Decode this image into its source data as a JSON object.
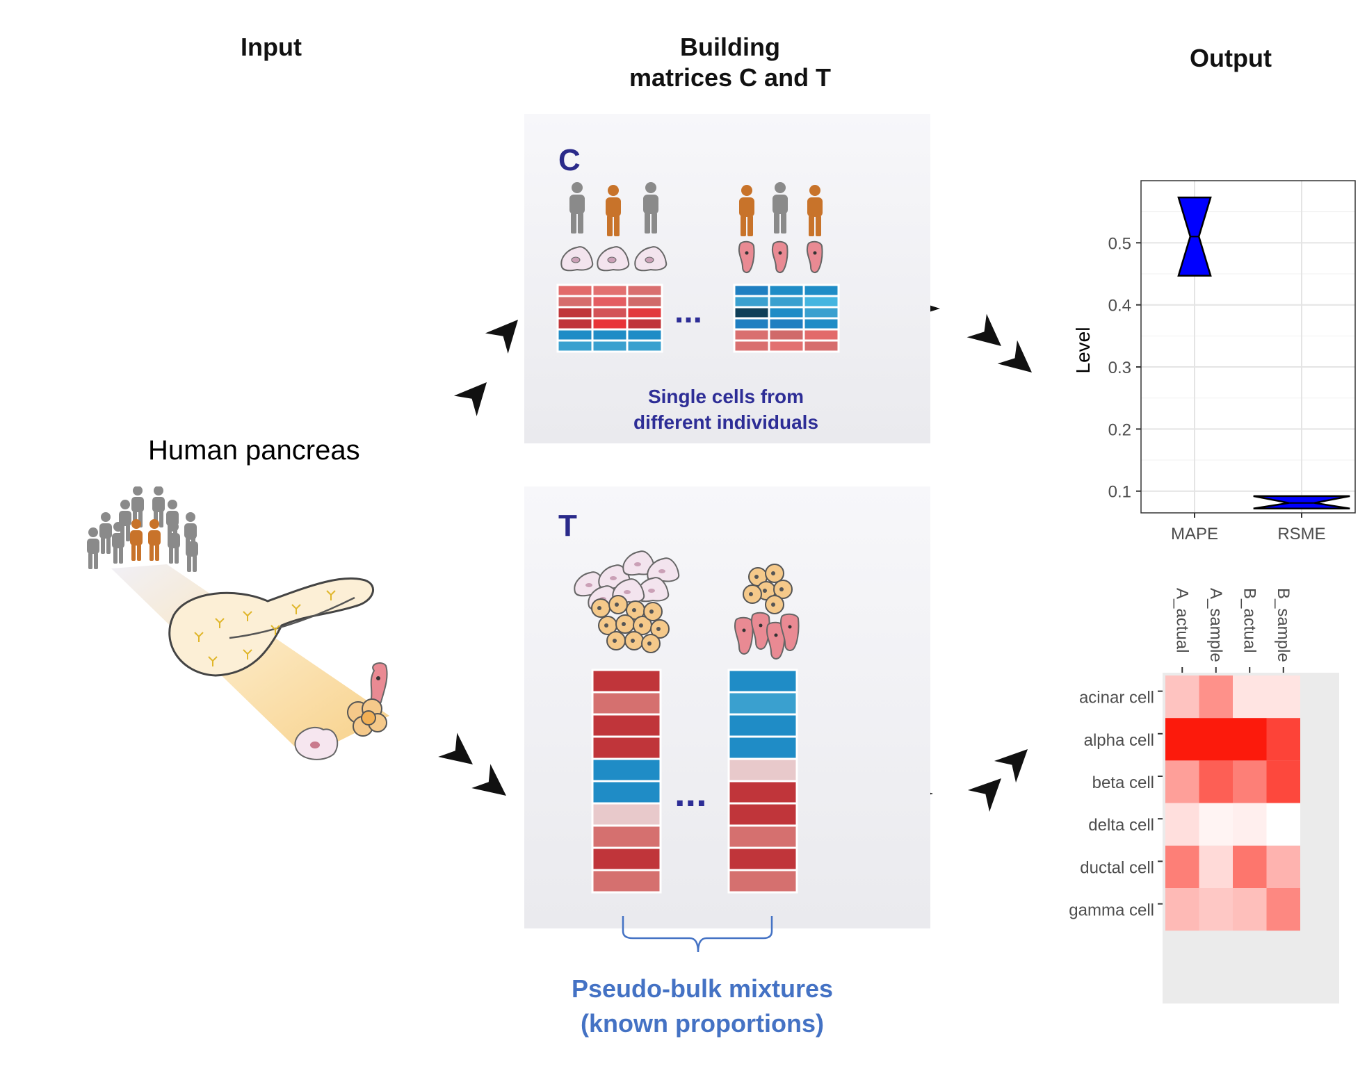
{
  "headers": {
    "input": "Input",
    "building_line1": "Building",
    "building_line2": "matrices C and T",
    "output": "Output"
  },
  "input": {
    "pancreas_title": "Human pancreas"
  },
  "panel_c": {
    "letter": "C",
    "note_line1": "Single cells from",
    "note_line2": "different individuals",
    "ellipsis": "..."
  },
  "panel_t": {
    "letter": "T",
    "ellipsis": "...",
    "caption_line1": "Pseudo-bulk mixtures",
    "caption_line2": "(known proportions)"
  },
  "colors": {
    "male_person": "#8a8a8a",
    "female_person": "#c8732a",
    "red_high": "#c0353a",
    "red_mid": "#d5706f",
    "red_low": "#e8c9cb",
    "blue_high": "#1f7fc1",
    "blue_mid": "#3aa0cf",
    "accent_text": "#2d2d96",
    "caption_text": "#4472c4",
    "boxplot_fill": "#0000ff"
  },
  "chart_data": [
    {
      "type": "boxplot",
      "ylabel": "Level",
      "categories": [
        "MAPE",
        "RSME"
      ],
      "y_ticks": [
        0.1,
        0.2,
        0.3,
        0.4,
        0.5
      ],
      "ylim": [
        0.065,
        0.6
      ],
      "grid": true,
      "boxes": [
        {
          "category": "MAPE",
          "q1": 0.447,
          "median": 0.51,
          "q3": 0.573
        },
        {
          "category": "RSME",
          "q1": 0.072,
          "median": 0.081,
          "q3": 0.092
        }
      ]
    },
    {
      "type": "heatmap",
      "columns": [
        "A_actual",
        "A_sample",
        "B_actual",
        "B_sample"
      ],
      "rows": [
        "acinar cell",
        "alpha cell",
        "beta cell",
        "delta cell",
        "ductal cell",
        "gamma cell"
      ],
      "color_low": "#ffffff",
      "color_high": "#fc1a0c",
      "values": [
        [
          0.26,
          0.48,
          0.12,
          0.12
        ],
        [
          1.0,
          1.0,
          1.0,
          0.82
        ],
        [
          0.42,
          0.7,
          0.56,
          0.8
        ],
        [
          0.14,
          0.05,
          0.07,
          0.0
        ],
        [
          0.56,
          0.16,
          0.6,
          0.33
        ],
        [
          0.3,
          0.24,
          0.28,
          0.52
        ]
      ]
    }
  ]
}
